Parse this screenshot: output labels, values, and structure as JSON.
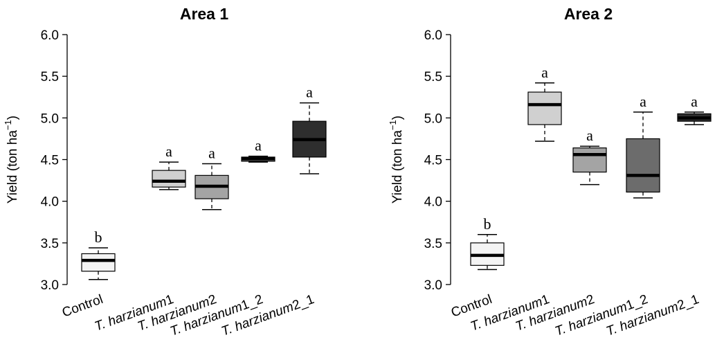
{
  "chart_data": [
    {
      "type": "box",
      "title": "Area 1",
      "ylabel_main": "Yield (ton ha",
      "ylabel_sup": "−1",
      "ylabel_close": ")",
      "ylim": [
        3.0,
        6.0
      ],
      "yticks": [
        "3.0",
        "3.5",
        "4.0",
        "4.5",
        "5.0",
        "5.5",
        "6.0"
      ],
      "categories": [
        "Control",
        "T. harzianum1",
        "T. harzianum2",
        "T. harzianum1_2",
        "T. harzianum2_1"
      ],
      "boxes": [
        {
          "whisker_low": 3.06,
          "q1": 3.16,
          "median": 3.29,
          "q3": 3.37,
          "whisker_high": 3.44,
          "fill": "#f4f4f4",
          "label": "b"
        },
        {
          "whisker_low": 4.14,
          "q1": 4.17,
          "median": 4.24,
          "q3": 4.37,
          "whisker_high": 4.47,
          "fill": "#d0d0d0",
          "label": "a"
        },
        {
          "whisker_low": 3.9,
          "q1": 4.03,
          "median": 4.18,
          "q3": 4.31,
          "whisker_high": 4.45,
          "fill": "#a4a4a4",
          "label": "a"
        },
        {
          "whisker_low": 4.47,
          "q1": 4.48,
          "median": 4.51,
          "q3": 4.53,
          "whisker_high": 4.54,
          "fill": "#6c6c6c",
          "label": "a"
        },
        {
          "whisker_low": 4.33,
          "q1": 4.53,
          "median": 4.74,
          "q3": 4.96,
          "whisker_high": 5.18,
          "fill": "#2e2e2e",
          "label": "a"
        }
      ]
    },
    {
      "type": "box",
      "title": "Area 2",
      "ylabel_main": "Yield (ton ha",
      "ylabel_sup": "−1",
      "ylabel_close": ")",
      "ylim": [
        3.0,
        6.0
      ],
      "yticks": [
        "3.0",
        "3.5",
        "4.0",
        "4.5",
        "5.0",
        "5.5",
        "6.0"
      ],
      "categories": [
        "Control",
        "T. harzianum1",
        "T. harzianum2",
        "T. harzianum1_2",
        "T. harzianum2_1"
      ],
      "boxes": [
        {
          "whisker_low": 3.18,
          "q1": 3.23,
          "median": 3.35,
          "q3": 3.5,
          "whisker_high": 3.6,
          "fill": "#f4f4f4",
          "label": "b"
        },
        {
          "whisker_low": 4.72,
          "q1": 4.92,
          "median": 5.16,
          "q3": 5.31,
          "whisker_high": 5.42,
          "fill": "#d0d0d0",
          "label": "a"
        },
        {
          "whisker_low": 4.2,
          "q1": 4.35,
          "median": 4.56,
          "q3": 4.64,
          "whisker_high": 4.66,
          "fill": "#a4a4a4",
          "label": "a"
        },
        {
          "whisker_low": 4.04,
          "q1": 4.11,
          "median": 4.31,
          "q3": 4.75,
          "whisker_high": 5.07,
          "fill": "#6c6c6c",
          "label": "a"
        },
        {
          "whisker_low": 4.92,
          "q1": 4.96,
          "median": 5.0,
          "q3": 5.05,
          "whisker_high": 5.07,
          "fill": "#2e2e2e",
          "label": "a"
        }
      ]
    }
  ]
}
